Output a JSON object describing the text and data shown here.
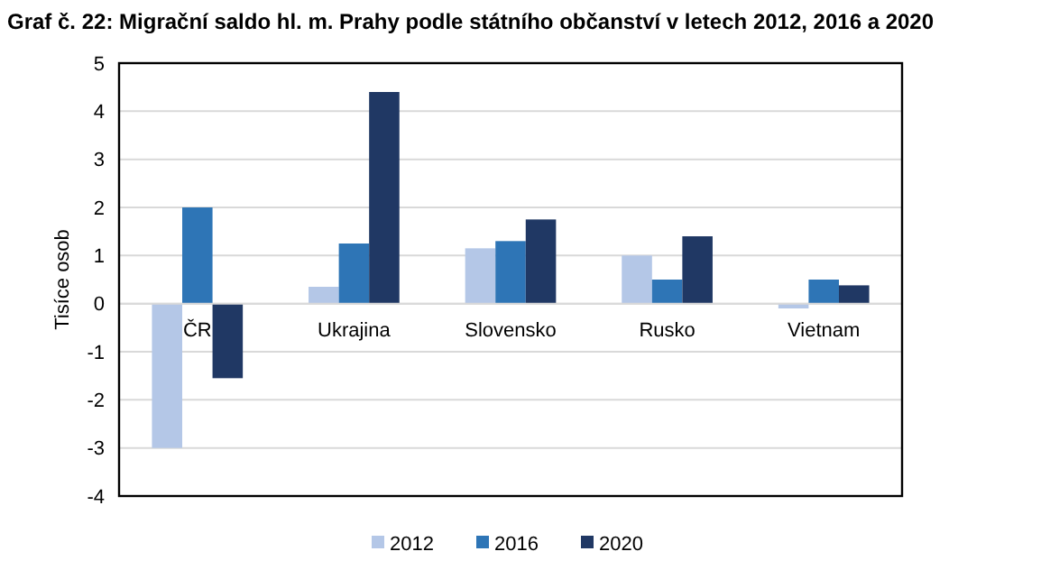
{
  "chart_data": {
    "type": "bar",
    "title": "Graf č. 22: Migrační saldo hl. m. Prahy podle státního občanství v letech 2012, 2016 a 2020",
    "ylabel": "Tisíce osob",
    "categories": [
      "ČR",
      "Ukrajina",
      "Slovensko",
      "Rusko",
      "Vietnam"
    ],
    "series": [
      {
        "name": "2012",
        "color": "#b4c7e7",
        "values": [
          -3.0,
          0.35,
          1.15,
          1.0,
          -0.1
        ]
      },
      {
        "name": "2016",
        "color": "#2e75b6",
        "values": [
          2.0,
          1.25,
          1.3,
          0.5,
          0.5
        ]
      },
      {
        "name": "2020",
        "color": "#203864",
        "values": [
          -1.55,
          4.4,
          1.75,
          1.4,
          0.38
        ]
      }
    ],
    "ylim": [
      -4,
      5
    ],
    "yticks": [
      -4,
      -3,
      -2,
      -1,
      0,
      1,
      2,
      3,
      4,
      5
    ],
    "grid": "y",
    "legend": "bottom"
  }
}
